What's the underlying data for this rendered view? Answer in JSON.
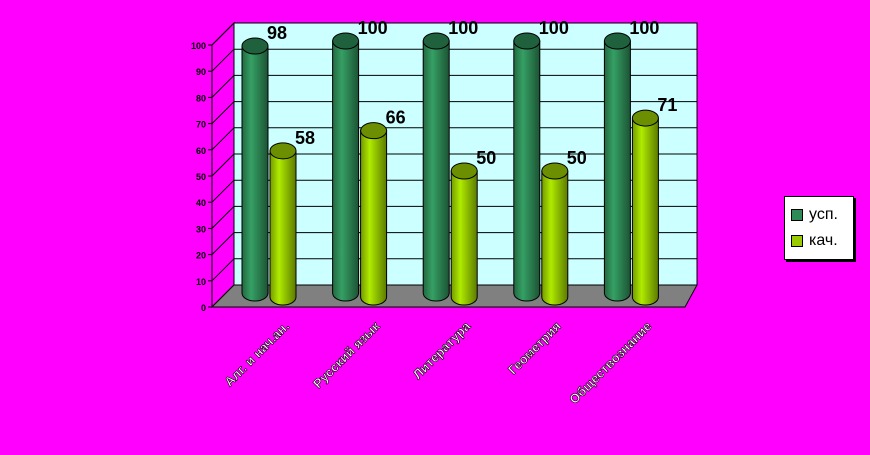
{
  "chart_data": {
    "type": "bar",
    "categories": [
      "Алг. и нач.ан.",
      "Русский язык",
      "Литература",
      "Геометрия",
      "Обществознание"
    ],
    "series": [
      {
        "name": "усп.",
        "values": [
          98,
          100,
          100,
          100,
          100
        ],
        "color": "#2e8b57"
      },
      {
        "name": "кач.",
        "values": [
          58,
          66,
          50,
          50,
          71
        ],
        "color": "#99cc00"
      }
    ],
    "ylim": [
      0,
      100
    ],
    "yticks": [
      0,
      10,
      20,
      30,
      40,
      50,
      60,
      70,
      80,
      90,
      100
    ],
    "grid": true,
    "legend": "right",
    "title": "",
    "xlabel": "",
    "ylabel": ""
  },
  "colors": {
    "background": "#ff00ff",
    "plot_wall": "#ccffff",
    "floor": "#808080"
  }
}
